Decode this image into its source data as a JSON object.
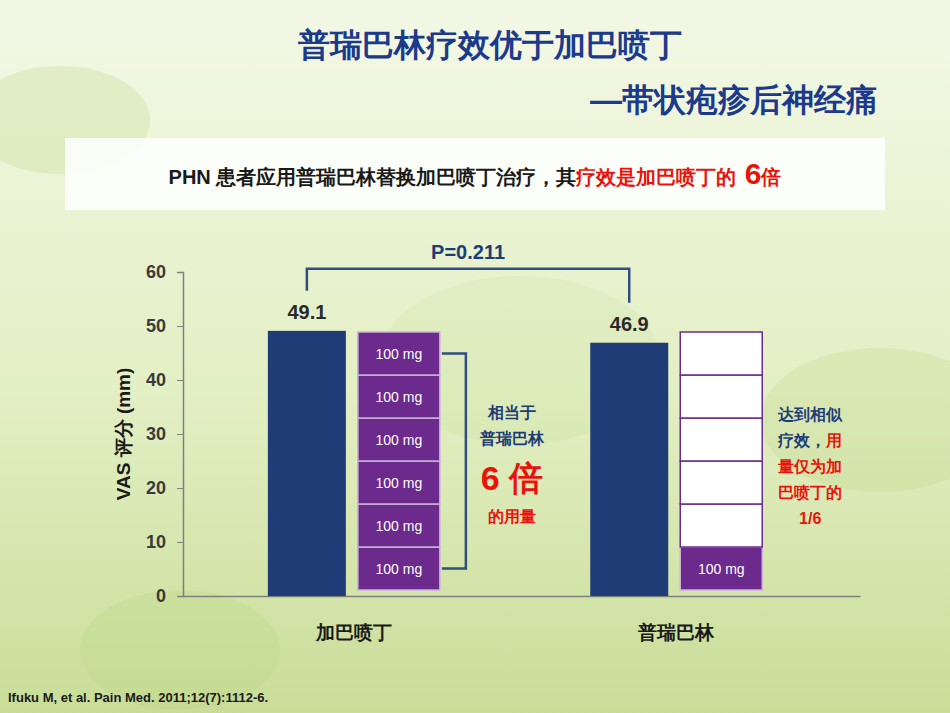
{
  "chart_data": {
    "type": "bar",
    "title": "普瑞巴林疗效优于加巴喷丁",
    "subtitle": "—带状疱疹后神经痛",
    "headline": [
      {
        "text": "PHN 患者应用普瑞巴林替换加巴喷丁治疗，其",
        "color": "#1a1a1a"
      },
      {
        "text": "疗效是加巴喷丁的",
        "color": "#e8140c"
      },
      {
        "text": " 6",
        "color": "#e8140c"
      },
      {
        "text": "倍",
        "color": "#e8140c"
      }
    ],
    "categories": [
      "加巴喷丁",
      "普瑞巴林"
    ],
    "values": [
      49.1,
      46.9
    ],
    "color": "#1f3c77",
    "data_labels": true,
    "grid": false,
    "ylabel": "VAS 评分 (mm)",
    "ylim": [
      0,
      60
    ],
    "yticks": [
      0,
      10,
      20,
      30,
      40,
      50,
      60
    ],
    "p_value": "P=0.211",
    "doses": [
      {
        "values": [
          100,
          100,
          100,
          100,
          100,
          100
        ],
        "labels": [
          "100 mg",
          "100 mg",
          "100 mg",
          "100 mg",
          "100 mg",
          "100 mg"
        ],
        "color": "#6c2a8c"
      },
      {
        "values": [
          100
        ],
        "labels": [
          "100 mg"
        ],
        "color": "#6c2a8c",
        "empty_slots": 5
      }
    ],
    "left_note": [
      {
        "text": "相当于",
        "color": "#1f3c77"
      },
      {
        "text": "普瑞巴林",
        "color": "#1f3c77"
      },
      {
        "text": "6 倍",
        "color": "#e8140c"
      },
      {
        "text": "的用量",
        "color": "#e8140c"
      }
    ],
    "right_note": [
      {
        "text": "达到相似疗效，",
        "color": "#1f3c77"
      },
      {
        "text": "用量仅为加巴喷丁的1/6",
        "color": "#e8140c"
      }
    ],
    "source": "Ifuku M, et al. Pain Med. 2011;12(7):1112-6."
  }
}
